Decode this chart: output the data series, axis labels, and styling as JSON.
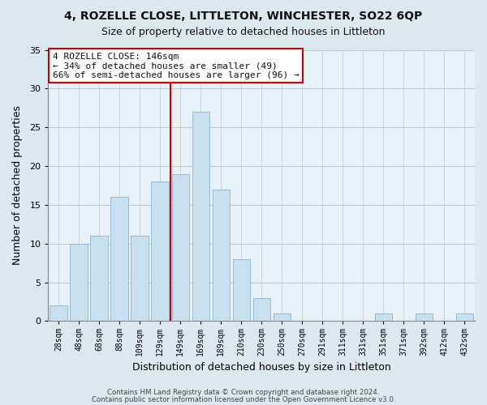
{
  "title_line1": "4, ROZELLE CLOSE, LITTLETON, WINCHESTER, SO22 6QP",
  "title_line2": "Size of property relative to detached houses in Littleton",
  "xlabel": "Distribution of detached houses by size in Littleton",
  "ylabel": "Number of detached properties",
  "bar_labels": [
    "28sqm",
    "48sqm",
    "68sqm",
    "88sqm",
    "109sqm",
    "129sqm",
    "149sqm",
    "169sqm",
    "189sqm",
    "210sqm",
    "230sqm",
    "250sqm",
    "270sqm",
    "291sqm",
    "311sqm",
    "331sqm",
    "351sqm",
    "371sqm",
    "392sqm",
    "412sqm",
    "432sqm"
  ],
  "bar_heights": [
    2,
    10,
    11,
    16,
    11,
    18,
    19,
    27,
    17,
    8,
    3,
    1,
    0,
    0,
    0,
    0,
    1,
    0,
    1,
    0,
    1
  ],
  "bar_color": "#c8dff0",
  "bar_edge_color": "#9abcd4",
  "vline_color": "#cc0000",
  "ylim": [
    0,
    35
  ],
  "yticks": [
    0,
    5,
    10,
    15,
    20,
    25,
    30,
    35
  ],
  "annotation_title": "4 ROZELLE CLOSE: 146sqm",
  "annotation_line1": "← 34% of detached houses are smaller (49)",
  "annotation_line2": "66% of semi-detached houses are larger (96) →",
  "annotation_box_color": "#ffffff",
  "annotation_box_edge": "#cc0000",
  "footer_line1": "Contains HM Land Registry data © Crown copyright and database right 2024.",
  "footer_line2": "Contains public sector information licensed under the Open Government Licence v3.0.",
  "background_color": "#dce8f0",
  "plot_bg_color": "#e8f0f8",
  "grid_color": "#c0ccd8"
}
